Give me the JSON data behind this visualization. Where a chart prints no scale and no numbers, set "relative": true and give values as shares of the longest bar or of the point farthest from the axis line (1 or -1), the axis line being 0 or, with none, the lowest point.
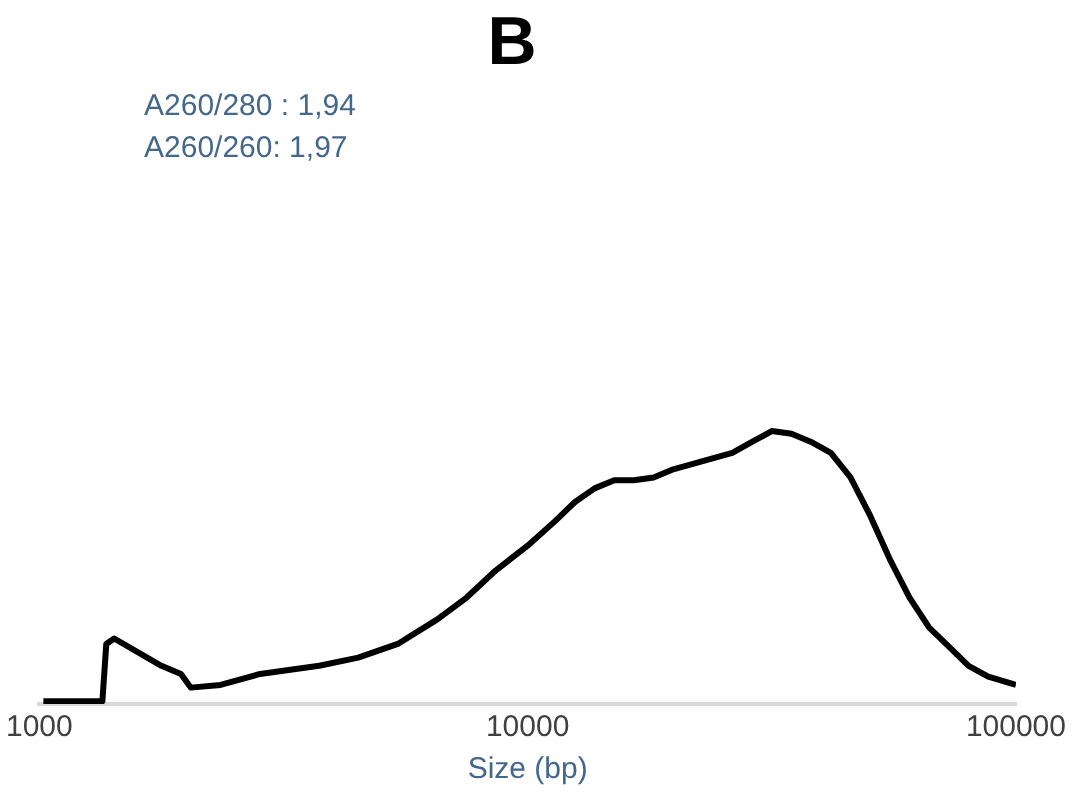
{
  "chart_data": {
    "type": "line",
    "title": "B",
    "xlabel": "Size (bp)",
    "relative": true,
    "log": "x",
    "grid": false,
    "legend": false,
    "marker": "none",
    "annotations": [
      "A260/280 : 1,94",
      "A260/260: 1,97"
    ],
    "xlim": [
      1000,
      100000
    ],
    "xticks": [
      1000,
      10000,
      100000
    ],
    "series": [
      {
        "color": "#000000",
        "x": [
          1019,
          1346,
          1371,
          1423,
          1778,
          1950,
          2042,
          2350,
          2831,
          3741,
          4498,
          5420,
          6531,
          7500,
          8610,
          10000,
          11380,
          12500,
          13710,
          15040,
          16500,
          18110,
          19870,
          21800,
          23920,
          26250,
          28800,
          31620,
          34700,
          38070,
          41770,
          45830,
          50290,
          55180,
          60540,
          66430,
          72890,
          79980,
          87750,
          100000
        ],
        "values": [
          0.01,
          0.01,
          0.22,
          0.24,
          0.14,
          0.11,
          0.06,
          0.07,
          0.11,
          0.14,
          0.17,
          0.22,
          0.31,
          0.39,
          0.49,
          0.58,
          0.67,
          0.74,
          0.79,
          0.82,
          0.82,
          0.83,
          0.86,
          0.88,
          0.9,
          0.92,
          0.96,
          1,
          0.99,
          0.96,
          0.92,
          0.83,
          0.69,
          0.53,
          0.39,
          0.28,
          0.21,
          0.14,
          0.1,
          0.07
        ]
      }
    ]
  }
}
